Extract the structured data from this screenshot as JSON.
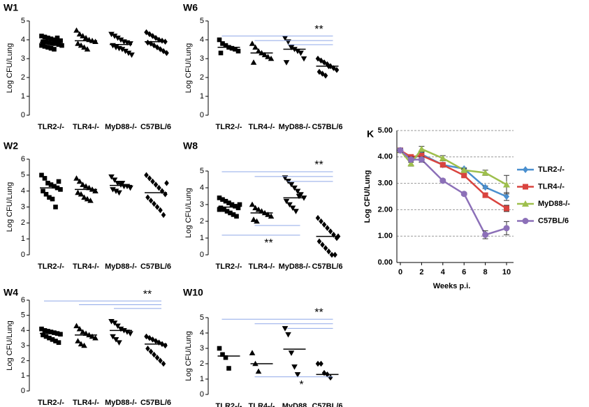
{
  "chart_data": [
    {
      "type": "dotplot",
      "title": "W1",
      "ylabel": "Log CFU/Lung",
      "categories": [
        "TLR2-/-",
        "TLR4-/-",
        "MyD88-/-",
        "C57BL/6"
      ],
      "markers": [
        "square",
        "triangle-up",
        "triangle-down",
        "diamond"
      ],
      "color": "#000000",
      "values": [
        [
          4.2,
          4.15,
          4.1,
          4.05,
          4,
          4,
          3.95,
          3.9,
          3.9,
          3.85,
          3.8,
          3.8,
          3.75,
          3.7,
          3.7,
          3.65,
          3.6,
          3.55,
          3.5,
          4.1,
          3.95,
          3.85
        ],
        [
          4.5,
          4.3,
          4.2,
          4.1,
          4.0,
          3.95,
          3.9,
          3.8,
          3.7,
          3.6,
          3.5
        ],
        [
          4.3,
          4.2,
          4.1,
          4.0,
          3.9,
          3.85,
          3.8,
          3.7,
          3.6,
          3.55,
          3.5,
          3.4,
          3.3,
          3.2
        ],
        [
          4.4,
          4.3,
          4.2,
          4.1,
          4.0,
          3.95,
          3.9,
          3.85,
          3.8,
          3.7,
          3.6,
          3.5,
          3.4,
          3.3
        ]
      ],
      "means": [
        3.87,
        3.95,
        3.75,
        3.9
      ],
      "ylim": [
        0,
        5
      ],
      "yticks": [
        0,
        1,
        2,
        3,
        4,
        5
      ],
      "sig_color": "#8fa8e8",
      "sig": []
    },
    {
      "type": "dotplot",
      "title": "W6",
      "ylabel": "Log CFU/Lung",
      "categories": [
        "TLR2-/-",
        "TLR4-/-",
        "MyD88-/-",
        "C57BL/6"
      ],
      "markers": [
        "square",
        "triangle-up",
        "triangle-down",
        "diamond"
      ],
      "color": "#000000",
      "values": [
        [
          4.0,
          3.8,
          3.7,
          3.6,
          3.55,
          3.5,
          3.4,
          3.3
        ],
        [
          3.8,
          3.6,
          3.4,
          3.3,
          3.2,
          3.1,
          3.0,
          2.8
        ],
        [
          4.1,
          3.9,
          3.6,
          3.5,
          3.4,
          3.3,
          3.0,
          2.8
        ],
        [
          3.0,
          2.9,
          2.8,
          2.7,
          2.6,
          2.5,
          2.4,
          2.3,
          2.2,
          2.1,
          2.6
        ]
      ],
      "means": [
        3.6,
        3.3,
        3.5,
        2.6
      ],
      "ylim": [
        0,
        5
      ],
      "yticks": [
        0,
        1,
        2,
        3,
        4,
        5
      ],
      "sig_color": "#8fa8e8",
      "sig": [
        {
          "label": "**",
          "position": "above",
          "lines": [
            {
              "from": 0,
              "to": 3,
              "y": 4.2
            },
            {
              "from": 1,
              "to": 3,
              "y": 3.96
            },
            {
              "from": 2,
              "to": 3,
              "y": 3.74
            }
          ]
        }
      ]
    },
    {
      "type": "dotplot",
      "title": "W2",
      "ylabel": "Log CFU/Lung",
      "categories": [
        "TLR2-/-",
        "TLR4-/-",
        "MyD88-/-",
        "C57BL/6"
      ],
      "markers": [
        "square",
        "triangle-up",
        "triangle-down",
        "diamond"
      ],
      "color": "#000000",
      "values": [
        [
          5.0,
          4.8,
          4.5,
          4.4,
          4.3,
          4.2,
          4.1,
          4.0,
          3.8,
          3.6,
          3.5,
          3.0,
          4.6
        ],
        [
          4.8,
          4.6,
          4.4,
          4.3,
          4.2,
          4.1,
          4.0,
          3.9,
          3.8,
          3.6,
          3.5,
          3.4
        ],
        [
          4.9,
          4.7,
          4.5,
          4.4,
          4.3,
          4.3,
          4.2,
          4.1,
          4.0,
          3.9,
          4.5
        ],
        [
          5.0,
          4.8,
          4.6,
          4.4,
          4.2,
          4.0,
          3.8,
          3.6,
          3.4,
          3.2,
          3.0,
          2.8,
          2.5,
          4.5
        ]
      ],
      "means": [
        4.2,
        4.1,
        4.35,
        3.9
      ],
      "ylim": [
        0,
        6
      ],
      "yticks": [
        0,
        1,
        2,
        3,
        4,
        5,
        6
      ],
      "sig_color": "#8fa8e8",
      "sig": []
    },
    {
      "type": "dotplot",
      "title": "W8",
      "ylabel": "Log CFU/Lung",
      "categories": [
        "TLR2-/-",
        "TLR4-/-",
        "MyD88-/-",
        "C57BL/6"
      ],
      "markers": [
        "square",
        "triangle-up",
        "triangle-down",
        "diamond"
      ],
      "color": "#000000",
      "values": [
        [
          3.4,
          3.3,
          3.2,
          3.1,
          3.0,
          2.9,
          2.8,
          2.8,
          2.7,
          2.6,
          2.5,
          2.4,
          2.3,
          3.0,
          2.7
        ],
        [
          3.0,
          2.8,
          2.7,
          2.6,
          2.5,
          2.4,
          2.3,
          2.1,
          2.0
        ],
        [
          4.6,
          4.4,
          4.2,
          4.0,
          3.8,
          3.6,
          3.4,
          3.2,
          3.0,
          2.8,
          2.6,
          3.5
        ],
        [
          2.2,
          2.0,
          1.8,
          1.6,
          1.4,
          1.2,
          1.0,
          0.8,
          0.6,
          0.4,
          0.2,
          0.0,
          0.0,
          1.1
        ]
      ],
      "means": [
        2.85,
        2.5,
        3.4,
        1.1
      ],
      "ylim": [
        0,
        5
      ],
      "yticks": [
        0,
        1,
        2,
        3,
        4,
        5
      ],
      "sig_color": "#8fa8e8",
      "sig": [
        {
          "label": "**",
          "position": "above",
          "lines": [
            {
              "from": 0,
              "to": 3,
              "y": 4.96
            },
            {
              "from": 1,
              "to": 3,
              "y": 4.67
            },
            {
              "from": 2,
              "to": 3,
              "y": 4.38
            }
          ]
        },
        {
          "label": "**",
          "position": "below",
          "lines": [
            {
              "from": 1,
              "to": 2,
              "y": 1.75
            },
            {
              "from": 0,
              "to": 2,
              "y": 1.17
            }
          ]
        }
      ]
    },
    {
      "type": "dotplot",
      "title": "W4",
      "ylabel": "Log CFU/Lung",
      "categories": [
        "TLR2-/-",
        "TLR4-/-",
        "MyD88-/-",
        "C57BL/6"
      ],
      "markers": [
        "square",
        "triangle-up",
        "triangle-down",
        "diamond"
      ],
      "color": "#000000",
      "values": [
        [
          4.1,
          4.0,
          3.95,
          3.9,
          3.85,
          3.8,
          3.75,
          3.7,
          3.6,
          3.5,
          3.4,
          3.3,
          3.2
        ],
        [
          4.3,
          4.1,
          3.9,
          3.8,
          3.7,
          3.6,
          3.5,
          3.3,
          3.1,
          3.0
        ],
        [
          4.6,
          4.5,
          4.3,
          4.1,
          4.0,
          3.9,
          3.8,
          3.6,
          3.4,
          3.2
        ],
        [
          3.6,
          3.5,
          3.4,
          3.3,
          3.2,
          3.1,
          3.0,
          2.8,
          2.6,
          2.4,
          2.2,
          2.0,
          1.8
        ]
      ],
      "means": [
        3.8,
        3.7,
        4.0,
        3.1
      ],
      "ylim": [
        0,
        6
      ],
      "yticks": [
        0,
        1,
        2,
        3,
        4,
        5,
        6
      ],
      "sig_color": "#8fa8e8",
      "sig": [
        {
          "label": "**",
          "position": "above",
          "lines": [
            {
              "from": 0,
              "to": 3,
              "y": 5.95
            },
            {
              "from": 1,
              "to": 3,
              "y": 5.7
            },
            {
              "from": 2,
              "to": 3,
              "y": 5.45
            }
          ]
        }
      ]
    },
    {
      "type": "dotplot",
      "title": "W10",
      "ylabel": "Log CFU/Lung",
      "categories": [
        "TLR2-/-",
        "TLR4-/-",
        "MyD88",
        "C57BL/6"
      ],
      "markers": [
        "square",
        "triangle-up",
        "triangle-down",
        "diamond"
      ],
      "color": "#000000",
      "values": [
        [
          3.0,
          2.6,
          2.4,
          1.7
        ],
        [
          2.7,
          2.0,
          1.5
        ],
        [
          4.3,
          3.9,
          2.7,
          1.8,
          1.3
        ],
        [
          2.0,
          2.0,
          1.4,
          1.3,
          1.1
        ]
      ],
      "means": [
        2.5,
        2.0,
        2.95,
        1.3
      ],
      "ylim": [
        0,
        5
      ],
      "yticks": [
        0,
        1,
        2,
        3,
        4,
        5
      ],
      "sig_color": "#8fa8e8",
      "sig": [
        {
          "label": "**",
          "position": "above",
          "lines": [
            {
              "from": 0,
              "to": 3,
              "y": 4.9
            },
            {
              "from": 1,
              "to": 3,
              "y": 4.6
            },
            {
              "from": 2,
              "to": 3,
              "y": 4.3
            }
          ]
        },
        {
          "label": "*",
          "position": "below",
          "lines": [
            {
              "from": 1,
              "to": 3,
              "y": 1.15
            }
          ]
        }
      ]
    },
    {
      "type": "line",
      "title": "K",
      "xlabel": "Weeks p.i.",
      "ylabel": "Log CFU/Lung",
      "x": [
        0,
        1,
        2,
        4,
        6,
        8,
        10
      ],
      "series": [
        {
          "name": "TLR2-/-",
          "color": "#4a8fcf",
          "marker": "diamond",
          "values": [
            4.25,
            3.9,
            4.1,
            3.7,
            3.55,
            2.85,
            2.5
          ],
          "errors": [
            0.08,
            0.05,
            0.08,
            0.05,
            0.04,
            0.05,
            0.15
          ]
        },
        {
          "name": "TLR4-/-",
          "color": "#d9443f",
          "marker": "square",
          "values": [
            4.25,
            4.0,
            4.05,
            3.7,
            3.3,
            2.55,
            2.05
          ],
          "errors": [
            0.08,
            0.05,
            0.1,
            0.05,
            0.05,
            0.08,
            0.12
          ]
        },
        {
          "name": "MyD88-/-",
          "color": "#9ebf4d",
          "marker": "triangle-up",
          "values": [
            4.25,
            3.75,
            4.3,
            3.95,
            3.5,
            3.4,
            2.95
          ],
          "errors": [
            0.08,
            0.1,
            0.1,
            0.1,
            0.05,
            0.1,
            0.35
          ]
        },
        {
          "name": "C57BL/6",
          "color": "#8c70b8",
          "marker": "circle",
          "values": [
            4.25,
            3.9,
            3.9,
            3.1,
            2.6,
            1.05,
            1.3
          ],
          "errors": [
            0.08,
            0.1,
            0.1,
            0.05,
            0.05,
            0.15,
            0.25
          ]
        }
      ],
      "xlim": [
        0,
        10
      ],
      "xticks": [
        0,
        2,
        4,
        6,
        8,
        10
      ],
      "ylim": [
        0,
        5
      ],
      "yticks": [
        {
          "value": 0,
          "label": "0.00"
        },
        {
          "value": 1,
          "label": "1.00"
        },
        {
          "value": 2,
          "label": "2.00"
        },
        {
          "value": 3,
          "label": "3.00"
        },
        {
          "value": 4,
          "label": "4.00"
        },
        {
          "value": 5,
          "label": "5.00"
        }
      ],
      "grid": true,
      "legend": "right"
    }
  ]
}
